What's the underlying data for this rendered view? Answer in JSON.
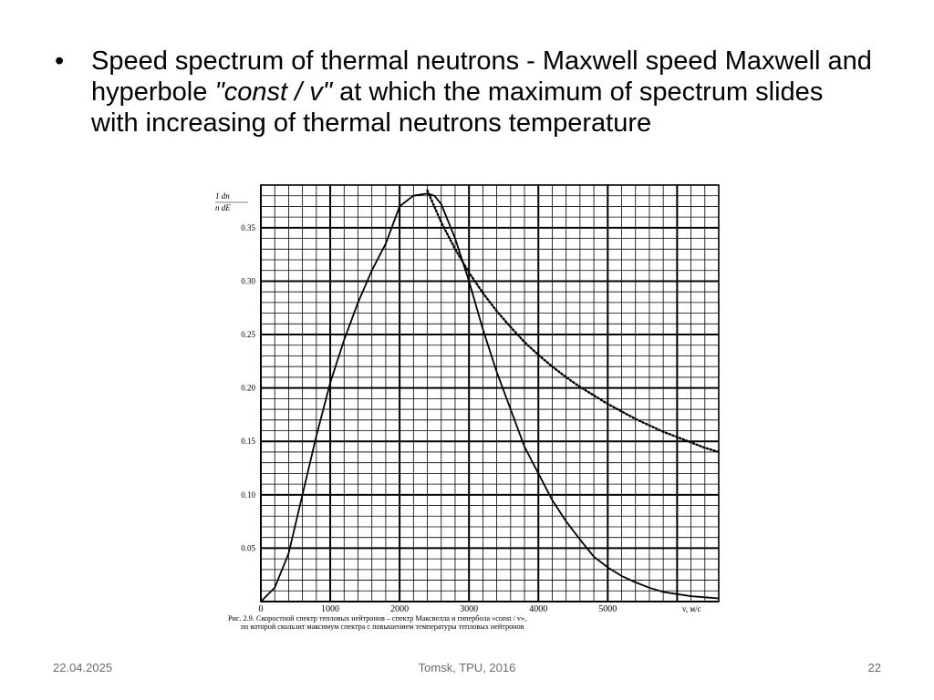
{
  "slide": {
    "bullet_char": "•",
    "bullet_part1": "Speed spectrum of thermal neutrons - Maxwell speed Maxwell and hyperbole ",
    "bullet_italic": "\"const / v\"",
    "bullet_part2": " at which the maximum of spectrum slides with increasing of thermal neutrons temperature"
  },
  "footer": {
    "date": "22.04.2025",
    "center": "Tomsk, TPU, 2016",
    "page": "22"
  },
  "chart_data": {
    "type": "line",
    "ylabel_top": "1  dn",
    "ylabel_bottom": "n  dE",
    "xlabel": "v, м/с",
    "xlim": [
      0,
      6600
    ],
    "ylim": [
      0,
      0.39
    ],
    "x_ticks": [
      0,
      1000,
      2000,
      3000,
      4000,
      5000
    ],
    "x_tick_labels": [
      "0",
      "1000",
      "2000",
      "3000",
      "4000",
      "5000"
    ],
    "y_ticks": [
      0.05,
      0.1,
      0.15,
      0.2,
      0.25,
      0.3,
      0.35
    ],
    "y_tick_labels": [
      "0.05",
      "0.10",
      "0.15",
      "0.20",
      "0.25",
      "0.30",
      "0.35"
    ],
    "grid": true,
    "caption_line1": "Рис. 2.9. Скоростной спектр тепловых нейтронов – спектр Максвелла и гипербола «const / v»,",
    "caption_line2": "по которой скользит максимум спектра с повышением температуры тепловых нейтронов",
    "series": [
      {
        "style": "solid",
        "x": [
          0,
          200,
          400,
          600,
          800,
          1000,
          1200,
          1400,
          1600,
          1800,
          2000,
          2200,
          2400,
          2500,
          2600,
          2800,
          3000,
          3200,
          3400,
          3600,
          3800,
          4000,
          4200,
          4400,
          4600,
          4800,
          5000,
          5200,
          5400,
          5600,
          5800,
          6000,
          6200,
          6400,
          6600
        ],
        "y": [
          0.0,
          0.013,
          0.045,
          0.1,
          0.155,
          0.205,
          0.245,
          0.28,
          0.31,
          0.335,
          0.37,
          0.38,
          0.382,
          0.38,
          0.372,
          0.34,
          0.3,
          0.255,
          0.215,
          0.18,
          0.145,
          0.12,
          0.095,
          0.075,
          0.058,
          0.042,
          0.032,
          0.024,
          0.018,
          0.013,
          0.009,
          0.007,
          0.005,
          0.004,
          0.003
        ]
      },
      {
        "style": "dotted",
        "x": [
          2400,
          2600,
          2800,
          3000,
          3200,
          3400,
          3600,
          3800,
          4000,
          4200,
          4400,
          4600,
          4800,
          5000,
          5200,
          5400,
          5600,
          5800,
          6000,
          6200,
          6400,
          6600
        ],
        "y": [
          0.385,
          0.355,
          0.33,
          0.308,
          0.289,
          0.272,
          0.257,
          0.243,
          0.231,
          0.22,
          0.21,
          0.201,
          0.193,
          0.185,
          0.178,
          0.171,
          0.165,
          0.159,
          0.154,
          0.149,
          0.144,
          0.14
        ]
      }
    ]
  }
}
